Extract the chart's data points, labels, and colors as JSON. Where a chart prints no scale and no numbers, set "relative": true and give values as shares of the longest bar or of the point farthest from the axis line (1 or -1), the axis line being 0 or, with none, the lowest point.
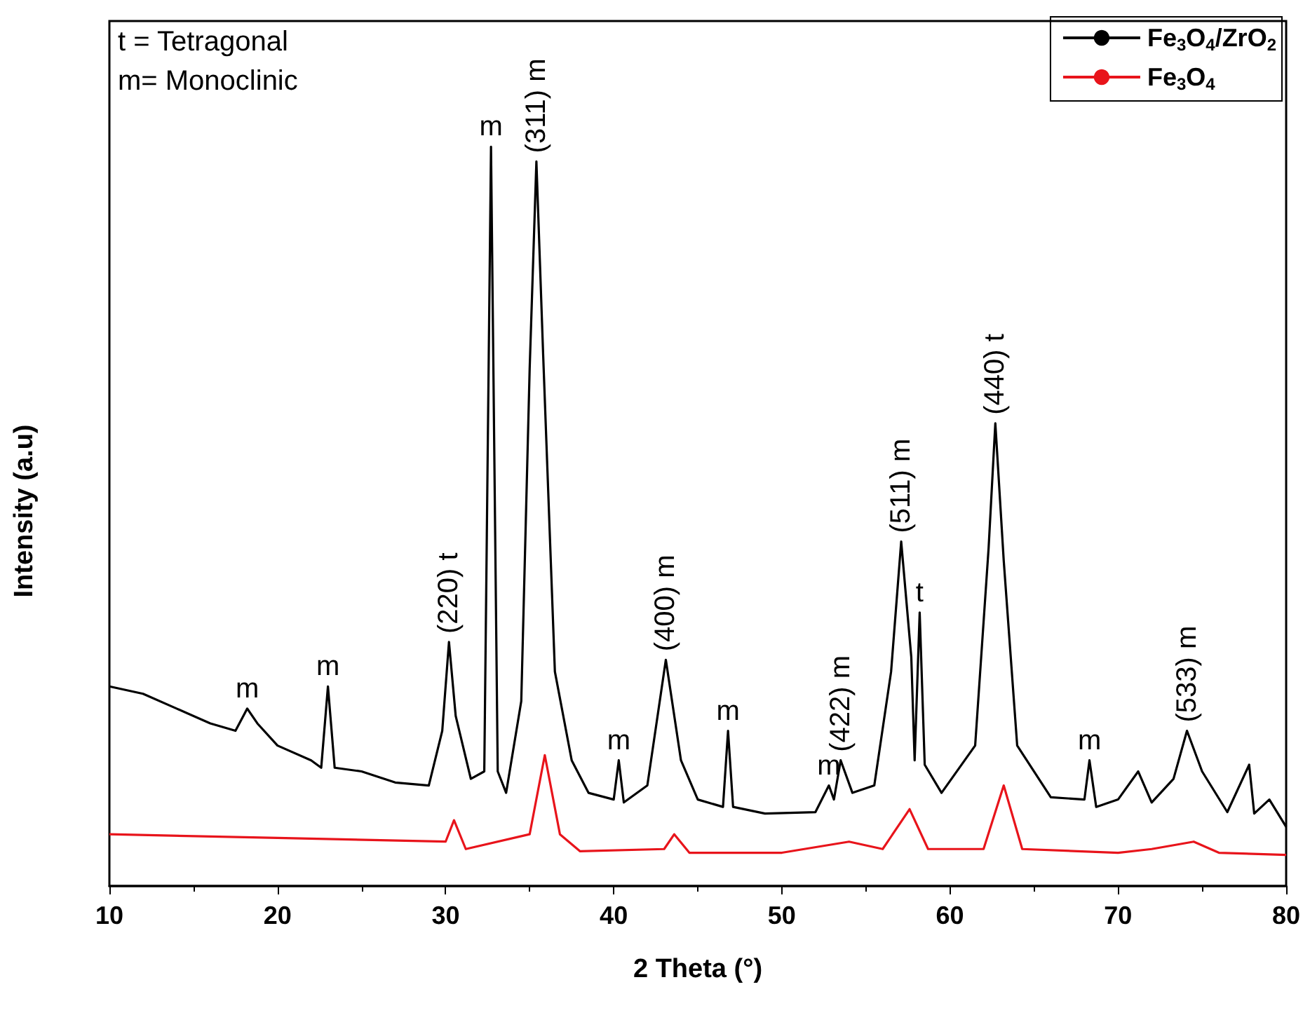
{
  "chart_data": {
    "type": "line",
    "relative": true,
    "xlabel": "2 Theta (°)",
    "ylabel": "Intensity (a.u)",
    "xlim": [
      10,
      80
    ],
    "xticks": [
      10,
      20,
      30,
      40,
      50,
      60,
      70,
      80
    ],
    "legend": "top right",
    "grid": false,
    "marker": "none",
    "line_style": "solid",
    "annotations": [
      "t = Tetragonal",
      "m= Monoclinic",
      {
        "text": "m",
        "x": 18.2,
        "y": 0.24
      },
      {
        "text": "m",
        "x": 23,
        "y": 0.27
      },
      {
        "text": "(220) t",
        "x": 30.2,
        "y": 0.33
      },
      {
        "text": "m",
        "x": 32.7,
        "y": 1
      },
      {
        "text": "(311) m",
        "x": 35.4,
        "y": 0.98
      },
      {
        "text": "m",
        "x": 40.3,
        "y": 0.17
      },
      {
        "text": "(400) m",
        "x": 43.1,
        "y": 0.306
      },
      {
        "text": "m",
        "x": 46.8,
        "y": 0.21
      },
      {
        "text": "m",
        "x": 52.8,
        "y": 0.136
      },
      {
        "text": "(422) m",
        "x": 53.5,
        "y": 0.17
      },
      {
        "text": "(511) m",
        "x": 57.1,
        "y": 0.466
      },
      {
        "text": "t",
        "x": 58.2,
        "y": 0.37
      },
      {
        "text": "(440) t",
        "x": 62.7,
        "y": 0.626
      },
      {
        "text": "m",
        "x": 68.3,
        "y": 0.17
      },
      {
        "text": "(533) m",
        "x": 74.1,
        "y": 0.21
      }
    ],
    "series": [
      {
        "name": "Fe$_{3}$O$_{4}$/ZrO$_{2}$",
        "color": "#000000",
        "x": [
          10,
          12,
          14,
          16,
          17.5,
          18.2,
          18.8,
          20,
          22,
          22.6,
          23,
          23.4,
          25,
          27,
          29,
          29.8,
          30.2,
          30.6,
          31.5,
          32.3,
          32.7,
          33.1,
          33.6,
          34.5,
          35,
          35.4,
          35.8,
          36.5,
          37.5,
          38.5,
          40,
          40.3,
          40.6,
          42,
          43.1,
          44,
          45,
          46.5,
          46.8,
          47.1,
          49,
          52,
          52.8,
          53.1,
          53.5,
          54.2,
          55.5,
          56.5,
          57.1,
          57.7,
          57.9,
          58.2,
          58.5,
          59.5,
          61.5,
          62.3,
          62.7,
          63.2,
          64,
          66,
          68,
          68.3,
          68.7,
          70,
          71.2,
          72,
          73.3,
          74.1,
          75,
          76.5,
          77.8,
          78.1,
          79,
          80
        ],
        "values": [
          0.27,
          0.26,
          0.24,
          0.22,
          0.21,
          0.24,
          0.22,
          0.19,
          0.17,
          0.16,
          0.27,
          0.16,
          0.155,
          0.14,
          0.136,
          0.21,
          0.33,
          0.23,
          0.145,
          0.155,
          1,
          0.155,
          0.126,
          0.25,
          0.7,
          0.98,
          0.72,
          0.29,
          0.17,
          0.126,
          0.117,
          0.17,
          0.113,
          0.136,
          0.306,
          0.17,
          0.117,
          0.107,
          0.21,
          0.107,
          0.098,
          0.1,
          0.136,
          0.117,
          0.17,
          0.126,
          0.136,
          0.29,
          0.466,
          0.31,
          0.17,
          0.37,
          0.164,
          0.126,
          0.19,
          0.457,
          0.626,
          0.44,
          0.19,
          0.12,
          0.117,
          0.17,
          0.107,
          0.117,
          0.155,
          0.113,
          0.145,
          0.21,
          0.155,
          0.1,
          0.164,
          0.098,
          0.117,
          0.08
        ]
      },
      {
        "name": "Fe$_{3}$O$_{4}$",
        "color": "#e8141b",
        "x": [
          10,
          20,
          30,
          30.5,
          31.2,
          35,
          35.9,
          36.8,
          38,
          43,
          43.6,
          44.5,
          50,
          54,
          56,
          57.6,
          58.7,
          62,
          63.2,
          64.3,
          70,
          72,
          74.5,
          76,
          80
        ],
        "values": [
          0.07,
          0.065,
          0.06,
          0.089,
          0.05,
          0.07,
          0.177,
          0.07,
          0.047,
          0.05,
          0.07,
          0.045,
          0.045,
          0.06,
          0.05,
          0.104,
          0.05,
          0.05,
          0.136,
          0.05,
          0.045,
          0.05,
          0.06,
          0.045,
          0.042
        ]
      }
    ]
  }
}
